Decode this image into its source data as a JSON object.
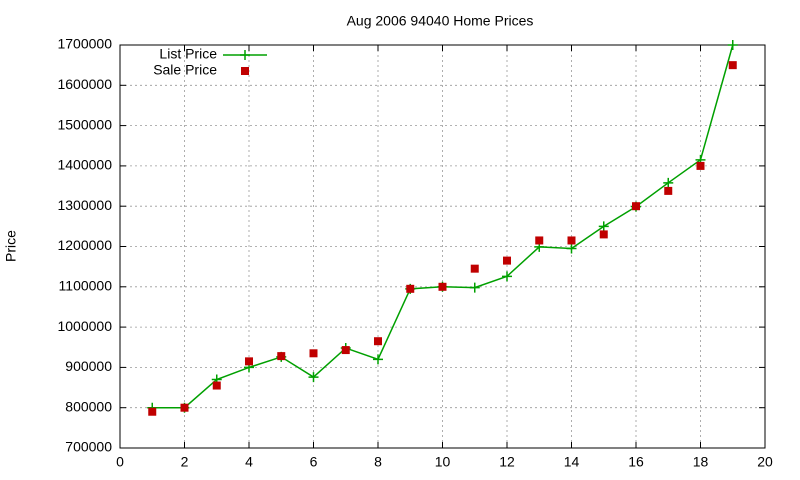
{
  "chart_data": {
    "type": "line",
    "title": "Aug 2006 94040 Home Prices",
    "y_label": "Price",
    "x": [
      1,
      2,
      3,
      4,
      5,
      6,
      7,
      8,
      9,
      10,
      11,
      12,
      13,
      14,
      15,
      16,
      17,
      18,
      19
    ],
    "series": [
      {
        "name": "List Price",
        "color": "#00a000",
        "style": "linespoints",
        "values": [
          800000,
          800000,
          870000,
          900000,
          926000,
          876000,
          948000,
          920000,
          1095000,
          1100000,
          1098000,
          1126000,
          1199000,
          1195000,
          1250000,
          1299000,
          1358000,
          1415000,
          1700000
        ]
      },
      {
        "name": "Sale Price",
        "color": "#c00000",
        "style": "points",
        "values": [
          790000,
          800000,
          855000,
          915000,
          928000,
          935000,
          943000,
          965000,
          1095000,
          1100000,
          1145000,
          1165000,
          1215000,
          1215000,
          1230000,
          1300000,
          1338000,
          1400000,
          1650000
        ]
      }
    ],
    "xlim": [
      0,
      20
    ],
    "xticks": [
      0,
      2,
      4,
      6,
      8,
      10,
      12,
      14,
      16,
      18,
      20
    ],
    "ylim": [
      700000,
      1700000
    ],
    "yticks": [
      700000,
      800000,
      900000,
      1000000,
      1100000,
      1200000,
      1300000,
      1400000,
      1500000,
      1600000,
      1700000
    ],
    "grid": true,
    "legend": "top-left"
  }
}
